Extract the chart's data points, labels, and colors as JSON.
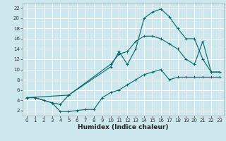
{
  "xlabel": "Humidex (Indice chaleur)",
  "bg_color": "#cce8ee",
  "line_color": "#006666",
  "grid_color": "#ffffff",
  "xlim": [
    -0.5,
    23.5
  ],
  "ylim": [
    1,
    23
  ],
  "xticks": [
    0,
    1,
    2,
    3,
    4,
    5,
    6,
    7,
    8,
    9,
    10,
    11,
    12,
    13,
    14,
    15,
    16,
    17,
    18,
    19,
    20,
    21,
    22,
    23
  ],
  "yticks": [
    2,
    4,
    6,
    8,
    10,
    12,
    14,
    16,
    18,
    20,
    22
  ],
  "line1_x": [
    0,
    1,
    2,
    3,
    4,
    5,
    10,
    11,
    12,
    13,
    14,
    15,
    16,
    17,
    18,
    19,
    20,
    21,
    22,
    23
  ],
  "line1_y": [
    4.5,
    4.5,
    4.0,
    3.5,
    3.2,
    5.0,
    10.5,
    13.5,
    11.0,
    14.0,
    20.0,
    21.2,
    21.8,
    20.3,
    18.0,
    16.0,
    16.0,
    12.0,
    9.5,
    9.5
  ],
  "line2_x": [
    0,
    5,
    10,
    11,
    12,
    13,
    14,
    15,
    16,
    17,
    18,
    19,
    20,
    21,
    22,
    23
  ],
  "line2_y": [
    4.5,
    5.0,
    11.0,
    13.0,
    13.5,
    15.5,
    16.5,
    16.5,
    16.0,
    15.0,
    14.0,
    12.0,
    11.0,
    15.5,
    9.5,
    9.5
  ],
  "line3_x": [
    0,
    1,
    2,
    3,
    4,
    5,
    6,
    7,
    8,
    9,
    10,
    11,
    12,
    13,
    14,
    15,
    16,
    17,
    18,
    19,
    20,
    21,
    22,
    23
  ],
  "line3_y": [
    4.5,
    4.5,
    4.0,
    3.5,
    1.8,
    1.8,
    2.0,
    2.2,
    2.2,
    4.5,
    5.5,
    6.0,
    7.0,
    8.0,
    9.0,
    9.5,
    10.0,
    8.0,
    8.5,
    8.5,
    8.5,
    8.5,
    8.5,
    8.5
  ],
  "xlabel_fontsize": 6.5,
  "tick_fontsize": 5.0
}
